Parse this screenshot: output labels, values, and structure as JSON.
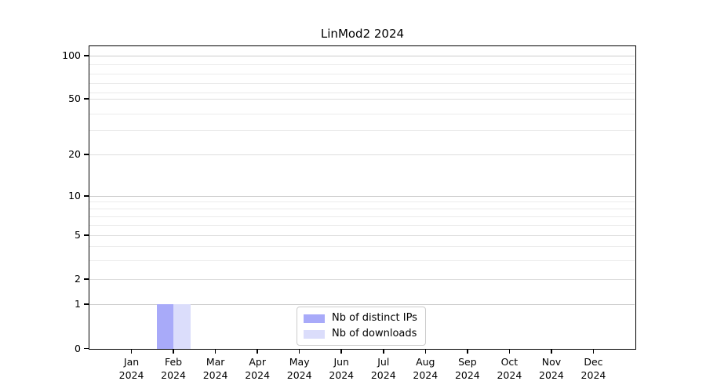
{
  "figure": {
    "title": "LinMod2 2024"
  },
  "chart_data": {
    "type": "bar",
    "title": "LinMod2 2024",
    "categories": [
      "Jan 2024",
      "Feb 2024",
      "Mar 2024",
      "Apr 2024",
      "May 2024",
      "Jun 2024",
      "Jul 2024",
      "Aug 2024",
      "Sep 2024",
      "Oct 2024",
      "Nov 2024",
      "Dec 2024"
    ],
    "series": [
      {
        "name": "Nb of distinct IPs",
        "color": "#a8aaf9",
        "values": [
          0,
          1,
          0,
          0,
          0,
          0,
          0,
          0,
          0,
          0,
          0,
          0
        ]
      },
      {
        "name": "Nb of downloads",
        "color": "#dbddfb",
        "values": [
          0,
          1,
          0,
          0,
          0,
          0,
          0,
          0,
          0,
          0,
          0,
          0
        ]
      }
    ],
    "xlabel": "",
    "ylabel": "",
    "y_axis": {
      "scale": "log-like above 1 with linear 0-1 segment",
      "tick_labels": [
        "0",
        "1",
        "2",
        "5",
        "10",
        "20",
        "50",
        "100"
      ],
      "ylim": [
        0,
        100
      ]
    },
    "x_axis": {
      "tick_label_line1": [
        "Jan",
        "Feb",
        "Mar",
        "Apr",
        "May",
        "Jun",
        "Jul",
        "Aug",
        "Sep",
        "Oct",
        "Nov",
        "Dec"
      ],
      "tick_label_line2": "2024"
    },
    "grid": "horizontal major and minor gridlines",
    "legend": {
      "position": "inside bottom center",
      "entries": [
        "Nb of distinct IPs",
        "Nb of downloads"
      ]
    },
    "colors": {
      "grid_decade": "#cccccc",
      "grid_labeled": "#dedede",
      "grid_minor": "#ebebeb",
      "axis": "#000000",
      "legend_border": "#cccccc",
      "background": "#ffffff"
    }
  }
}
